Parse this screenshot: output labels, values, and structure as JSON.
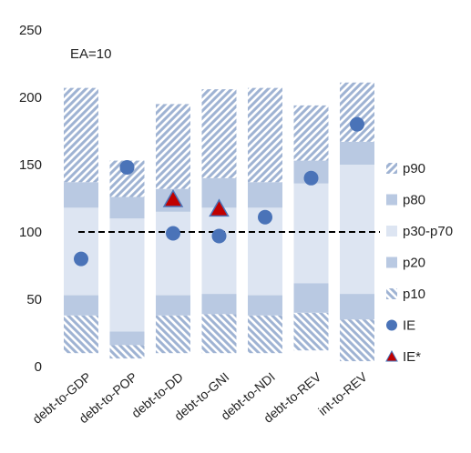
{
  "chart_data": {
    "type": "bar",
    "annotation": "EA=10",
    "categories": [
      "debt-to-GDP",
      "debt-to-POP",
      "debt-to-DD",
      "debt-to-GNI",
      "debt-to-NDI",
      "debt-to-REV",
      "int-to-REV"
    ],
    "ylim": [
      0,
      250
    ],
    "yticks": [
      0,
      50,
      100,
      150,
      200,
      250
    ],
    "reference_line": 100,
    "bands": {
      "min": [
        10,
        6,
        10,
        10,
        10,
        12,
        4
      ],
      "p10": [
        38,
        16,
        38,
        39,
        38,
        40,
        35
      ],
      "p20": [
        53,
        26,
        53,
        54,
        53,
        62,
        54
      ],
      "p70": [
        118,
        110,
        115,
        118,
        118,
        136,
        150
      ],
      "p80": [
        137,
        126,
        132,
        140,
        137,
        153,
        167
      ],
      "p90": [
        207,
        153,
        195,
        206,
        207,
        194,
        211
      ]
    },
    "series": [
      {
        "name": "IE",
        "values": [
          80,
          148,
          99,
          97,
          111,
          140,
          180
        ]
      },
      {
        "name": "IE*",
        "values": [
          null,
          null,
          124,
          117,
          null,
          null,
          null
        ]
      }
    ],
    "legend": {
      "position": "right",
      "entries": [
        "p90",
        "p80",
        "p30-p70",
        "p20",
        "p10",
        "IE",
        "IE*"
      ]
    },
    "colors": {
      "p90": "#9fb3d3",
      "p80": "#b9c9e2",
      "p30_p70": "#dde5f2",
      "p20": "#b9c9e2",
      "p10": "#9fb3d3",
      "IE": "#4a73b8",
      "IE_star_fill": "#c00000",
      "IE_star_edge": "#4a73b8",
      "reference_line": "#000000"
    }
  }
}
